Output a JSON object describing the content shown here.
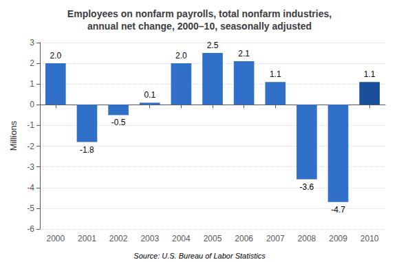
{
  "chart_data": {
    "type": "bar",
    "title": "Employees on nonfarm payrolls, total nonfarm industries,\nannual net change, 2000–10, seasonally adjusted",
    "ylabel": "Millions",
    "annotations": [
      "Source: U.S. Bureau of Labor Statistics"
    ],
    "categories": [
      "2000",
      "2001",
      "2002",
      "2003",
      "2004",
      "2005",
      "2006",
      "2007",
      "2008",
      "2009",
      "2010"
    ],
    "values": [
      2.0,
      -1.8,
      -0.5,
      0.1,
      2.0,
      2.5,
      2.1,
      1.1,
      -3.6,
      -4.7,
      1.1
    ],
    "value_labels": [
      "2.0",
      "-1.8",
      "-0.5",
      "0.1",
      "2.0",
      "2.5",
      "2.1",
      "1.1",
      "-3.6",
      "-4.7",
      "1.1"
    ],
    "colors": [
      "#3070C8",
      "#3070C8",
      "#3070C8",
      "#3070C8",
      "#3070C8",
      "#3070C8",
      "#3070C8",
      "#3070C8",
      "#3070C8",
      "#3070C8",
      "#1A4F9C"
    ],
    "data_labels": true,
    "ylim": [
      -6,
      3
    ],
    "yticks": [
      -6,
      -5,
      -4,
      -3,
      -2,
      -1,
      0,
      1,
      2,
      3
    ],
    "grid": true
  }
}
